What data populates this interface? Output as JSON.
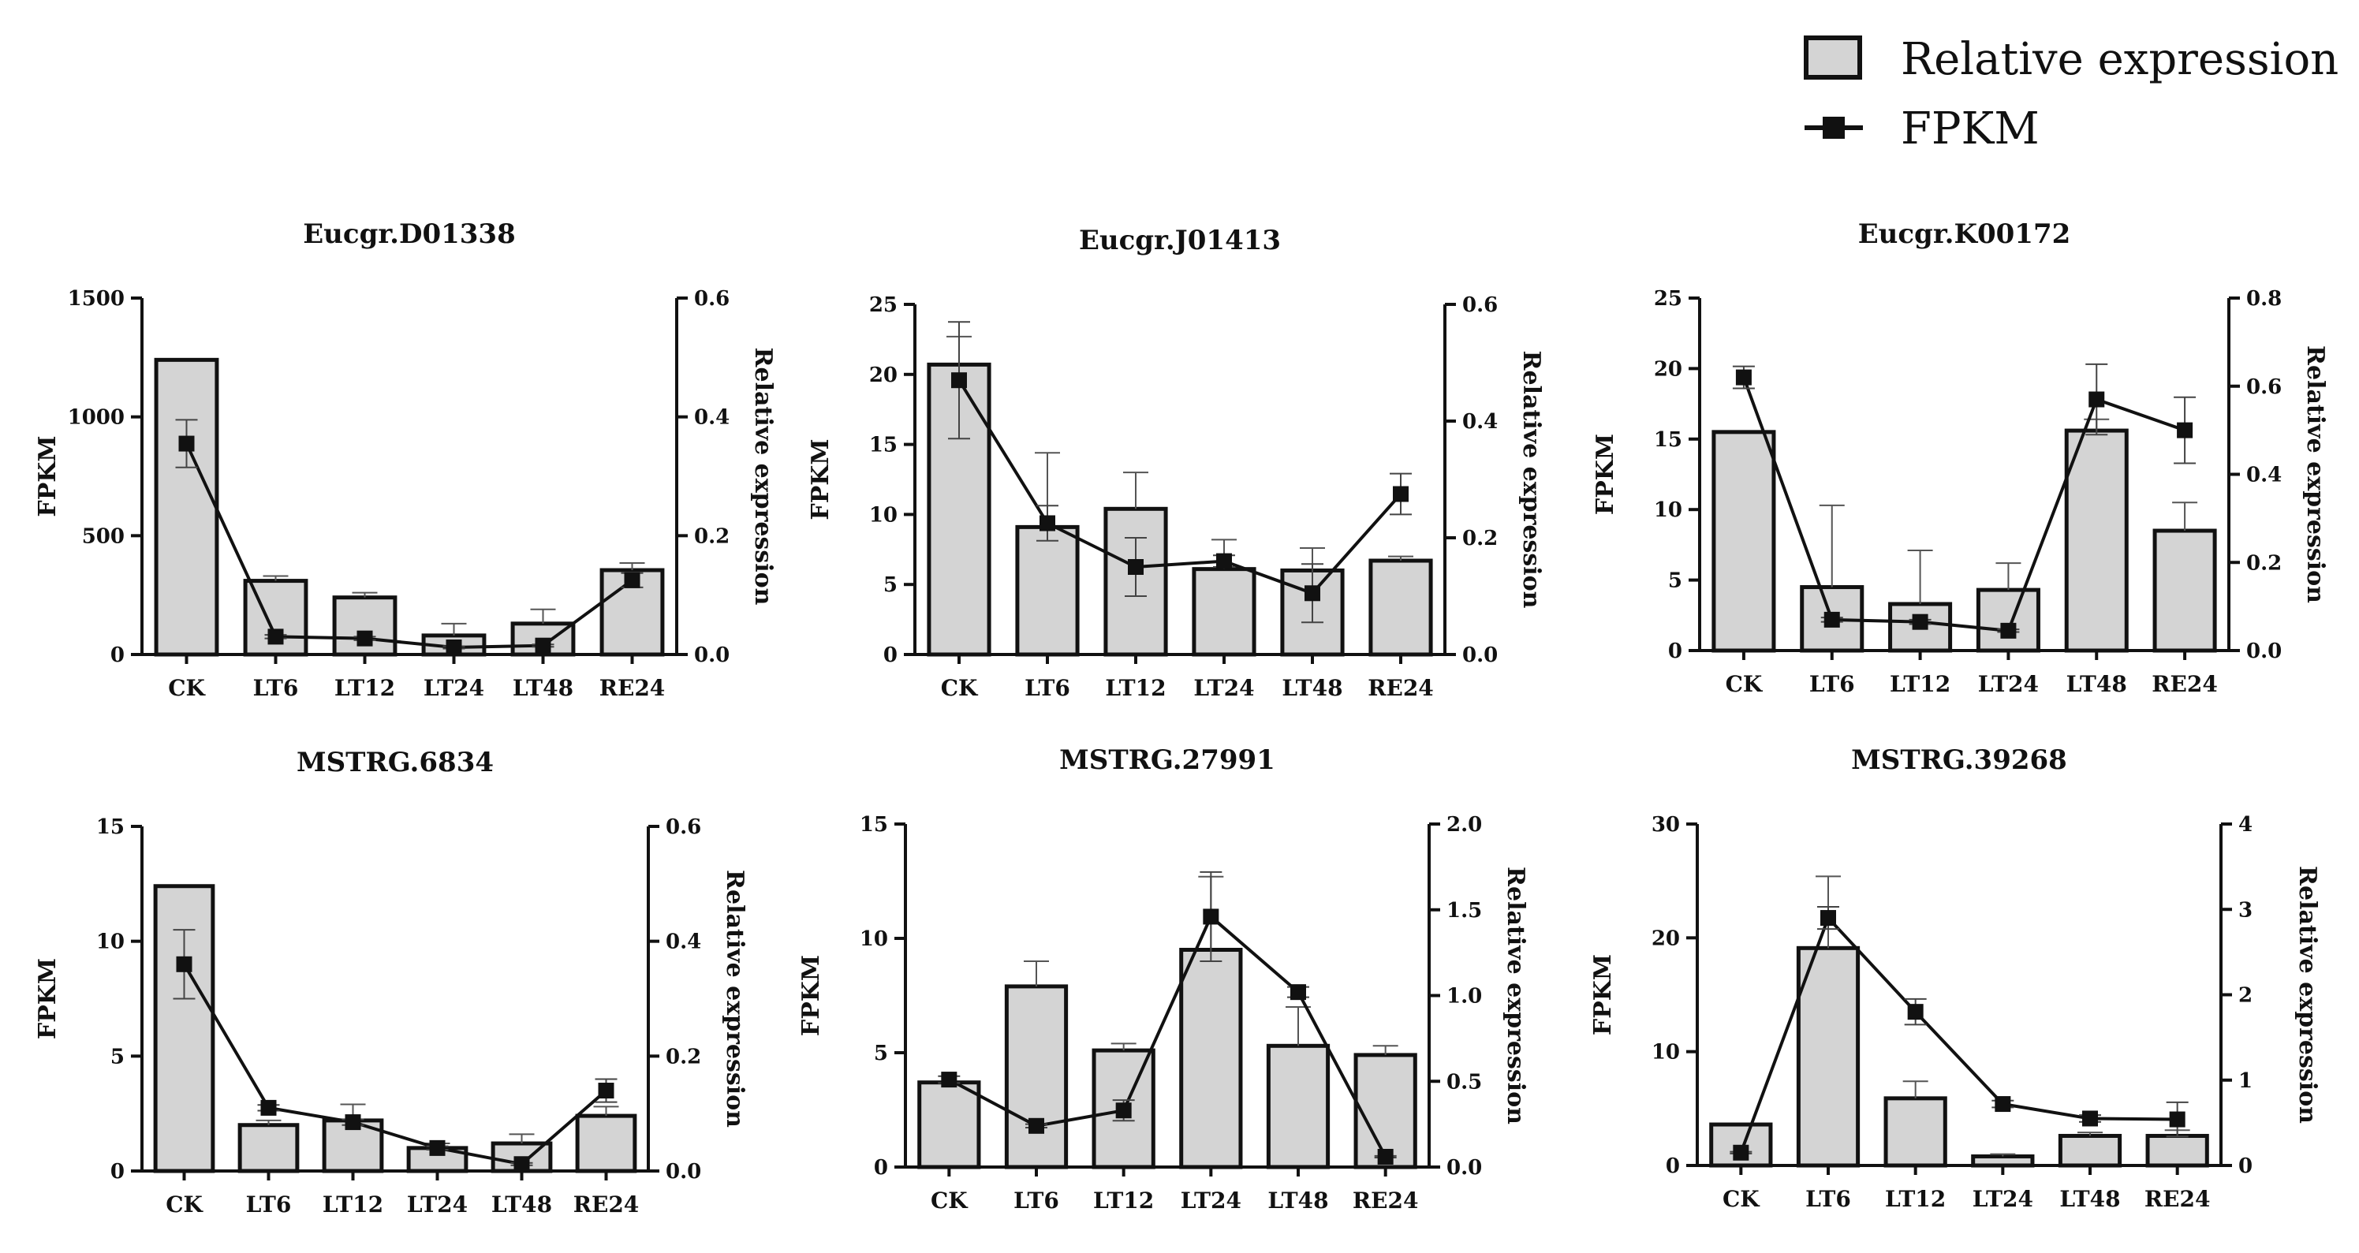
{
  "legend": {
    "bar_label": "Relative expression",
    "line_label": "FPKM",
    "placement": "top-right"
  },
  "colors": {
    "bar_fill": "#d4d4d4",
    "bar_stroke": "#111111",
    "line": "#111111",
    "axis": "#111111"
  },
  "chart_data": [
    {
      "type": "bar",
      "title": "Eucgr.D01338",
      "categories": [
        "CK",
        "LT6",
        "LT12",
        "LT24",
        "LT48",
        "RE24"
      ],
      "ylabel": "FPKM",
      "ylim": [
        0,
        1500
      ],
      "yticks": [
        "0",
        "500",
        "1000",
        "1500"
      ],
      "y2label": "Relative expression",
      "y2lim": [
        0,
        0.6
      ],
      "y2ticks": [
        "0.0",
        "0.2",
        "0.4",
        "0.6"
      ],
      "bars": {
        "values": [
          1240,
          310,
          240,
          80,
          130,
          355
        ],
        "errors": [
          0,
          20,
          20,
          50,
          60,
          30
        ]
      },
      "line": {
        "values": [
          0.355,
          0.03,
          0.027,
          0.012,
          0.015,
          0.125
        ],
        "errors": [
          0.04,
          0.003,
          0.003,
          0.002,
          0.002,
          0.012
        ]
      }
    },
    {
      "type": "bar",
      "title": "Eucgr.J01413",
      "categories": [
        "CK",
        "LT6",
        "LT12",
        "LT24",
        "LT48",
        "RE24"
      ],
      "ylabel": "FPKM",
      "ylim": [
        0,
        25
      ],
      "yticks": [
        "0",
        "5",
        "10",
        "15",
        "20",
        "25"
      ],
      "y2label": "Relative expression",
      "y2lim": [
        0,
        0.6
      ],
      "y2ticks": [
        "0.0",
        "0.2",
        "0.4",
        "0.6"
      ],
      "bars": {
        "values": [
          20.7,
          9.1,
          10.4,
          6.1,
          6.0,
          6.7
        ],
        "errors": [
          2.0,
          5.3,
          2.6,
          2.1,
          1.6,
          0.3
        ]
      },
      "line": {
        "values": [
          0.47,
          0.225,
          0.15,
          0.16,
          0.105,
          0.275
        ],
        "errors": [
          0.1,
          0.03,
          0.05,
          0.01,
          0.05,
          0.035
        ]
      }
    },
    {
      "type": "bar",
      "title": "Eucgr.K00172",
      "categories": [
        "CK",
        "LT6",
        "LT12",
        "LT24",
        "LT48",
        "RE24"
      ],
      "ylabel": "FPKM",
      "ylim": [
        0,
        25
      ],
      "yticks": [
        "0",
        "5",
        "10",
        "15",
        "20",
        "25"
      ],
      "y2label": "Relative expression",
      "y2lim": [
        0,
        0.8
      ],
      "y2ticks": [
        "0.0",
        "0.2",
        "0.4",
        "0.6",
        "0.8"
      ],
      "bars": {
        "values": [
          15.5,
          4.5,
          3.3,
          4.3,
          15.6,
          8.5
        ],
        "errors": [
          0,
          5.8,
          3.8,
          1.9,
          0.8,
          2.0
        ]
      },
      "line": {
        "values": [
          0.62,
          0.07,
          0.065,
          0.045,
          0.57,
          0.5
        ],
        "errors": [
          0.025,
          0.005,
          0.005,
          0.003,
          0.08,
          0.075
        ]
      }
    },
    {
      "type": "bar",
      "title": "MSTRG.6834",
      "categories": [
        "CK",
        "LT6",
        "LT12",
        "LT24",
        "LT48",
        "RE24"
      ],
      "ylabel": "FPKM",
      "ylim": [
        0,
        15
      ],
      "yticks": [
        "0",
        "5",
        "10",
        "15"
      ],
      "y2label": "Relative expression",
      "y2lim": [
        0,
        0.6
      ],
      "y2ticks": [
        "0.0",
        "0.2",
        "0.4",
        "0.6"
      ],
      "bars": {
        "values": [
          12.4,
          2.0,
          2.2,
          1.0,
          1.2,
          2.4
        ],
        "errors": [
          0,
          0.2,
          0.7,
          0.2,
          0.4,
          0.4
        ]
      },
      "line": {
        "values": [
          0.36,
          0.11,
          0.085,
          0.04,
          0.012,
          0.14
        ],
        "errors": [
          0.06,
          0.005,
          0.005,
          0.003,
          0.002,
          0.02
        ]
      }
    },
    {
      "type": "bar",
      "title": "MSTRG.27991",
      "categories": [
        "CK",
        "LT6",
        "LT12",
        "LT24",
        "LT48",
        "RE24"
      ],
      "ylabel": "FPKM",
      "ylim": [
        0,
        15
      ],
      "yticks": [
        "0",
        "5",
        "10",
        "15"
      ],
      "y2label": "Relative expression",
      "y2lim": [
        0,
        2.0
      ],
      "y2ticks": [
        "0.0",
        "0.5",
        "1.0",
        "1.5",
        "2.0"
      ],
      "bars": {
        "values": [
          3.7,
          7.9,
          5.1,
          9.5,
          5.3,
          4.9
        ],
        "errors": [
          0,
          1.1,
          0.3,
          3.2,
          1.7,
          0.4
        ]
      },
      "line": {
        "values": [
          0.51,
          0.24,
          0.33,
          1.46,
          1.02,
          0.06
        ],
        "errors": [
          0.02,
          0.01,
          0.06,
          0.26,
          0.03,
          0.005
        ]
      }
    },
    {
      "type": "bar",
      "title": "MSTRG.39268",
      "categories": [
        "CK",
        "LT6",
        "LT12",
        "LT24",
        "LT48",
        "RE24"
      ],
      "ylabel": "FPKM",
      "ylim": [
        0,
        30
      ],
      "yticks": [
        "0",
        "10",
        "20",
        "30"
      ],
      "y2label": "Relative expression",
      "y2lim": [
        0,
        4
      ],
      "y2ticks": [
        "0",
        "1",
        "2",
        "3",
        "4"
      ],
      "bars": {
        "values": [
          3.6,
          19.1,
          5.9,
          0.8,
          2.6,
          2.6
        ],
        "errors": [
          0,
          6.3,
          1.5,
          0.2,
          0.3,
          0.5
        ]
      },
      "line": {
        "values": [
          0.15,
          2.9,
          1.8,
          0.72,
          0.55,
          0.54
        ],
        "errors": [
          0.01,
          0.13,
          0.15,
          0.04,
          0.04,
          0.2
        ]
      }
    }
  ]
}
